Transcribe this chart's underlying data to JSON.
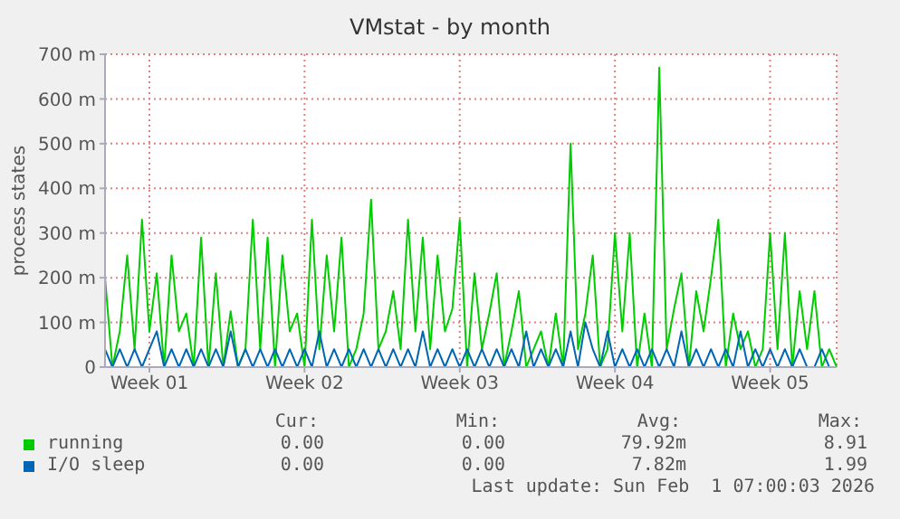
{
  "chart_data": {
    "type": "line",
    "title": "VMstat - by month",
    "ylabel": "process states",
    "categories": [
      null,
      null,
      null,
      null,
      null,
      null,
      "Week 01",
      null,
      null,
      null,
      null,
      null,
      null,
      null,
      null,
      null,
      null,
      null,
      null,
      null,
      null,
      null,
      null,
      null,
      null,
      null,
      null,
      "Week 02",
      null,
      null,
      null,
      null,
      null,
      null,
      null,
      null,
      null,
      null,
      null,
      null,
      null,
      null,
      null,
      null,
      null,
      null,
      null,
      null,
      "Week 03",
      null,
      null,
      null,
      null,
      null,
      null,
      null,
      null,
      null,
      null,
      null,
      null,
      null,
      null,
      null,
      null,
      null,
      null,
      null,
      null,
      "Week 04",
      null,
      null,
      null,
      null,
      null,
      null,
      null,
      null,
      null,
      null,
      null,
      null,
      null,
      null,
      null,
      null,
      null,
      null,
      null,
      null,
      "Week 05",
      null,
      null,
      null,
      null,
      null,
      null,
      null,
      null,
      null
    ],
    "ylim": [
      0,
      700
    ],
    "yticks": [
      0,
      {
        "value": 100,
        "label": "100 m"
      },
      {
        "value": 200,
        "label": "200 m"
      },
      {
        "value": 300,
        "label": "300 m"
      },
      {
        "value": 400,
        "label": "400 m"
      },
      {
        "value": 500,
        "label": "500 m"
      },
      {
        "value": 600,
        "label": "600 m"
      },
      {
        "value": 700,
        "label": "700 m"
      }
    ],
    "grid": true,
    "legend": "bottom",
    "marker": "none",
    "line_style": "solid",
    "series": [
      {
        "name": "running",
        "color": "#00cc00",
        "values": [
          200,
          0,
          80,
          250,
          40,
          330,
          80,
          210,
          0,
          250,
          80,
          120,
          0,
          290,
          0,
          210,
          0,
          125,
          0,
          40,
          330,
          40,
          290,
          0,
          250,
          80,
          120,
          0,
          330,
          40,
          250,
          80,
          290,
          0,
          40,
          120,
          375,
          40,
          80,
          170,
          40,
          330,
          80,
          290,
          40,
          250,
          80,
          130,
          330,
          0,
          210,
          40,
          120,
          210,
          0,
          80,
          170,
          0,
          40,
          80,
          0,
          120,
          0,
          500,
          40,
          120,
          250,
          0,
          40,
          300,
          80,
          300,
          0,
          120,
          0,
          670,
          40,
          130,
          210,
          0,
          170,
          80,
          200,
          330,
          0,
          120,
          40,
          80,
          0,
          40,
          300,
          40,
          300,
          0,
          170,
          40,
          170,
          0,
          40,
          0
        ]
      },
      {
        "name": "I/O sleep",
        "color": "#0066b3",
        "values": [
          40,
          0,
          40,
          0,
          40,
          0,
          40,
          80,
          0,
          40,
          0,
          40,
          0,
          40,
          0,
          40,
          0,
          80,
          0,
          40,
          0,
          40,
          0,
          40,
          0,
          40,
          0,
          40,
          0,
          80,
          0,
          40,
          0,
          40,
          0,
          40,
          0,
          40,
          0,
          40,
          0,
          40,
          0,
          80,
          0,
          40,
          0,
          40,
          0,
          40,
          0,
          40,
          0,
          40,
          0,
          40,
          0,
          80,
          0,
          40,
          0,
          40,
          0,
          80,
          0,
          100,
          40,
          0,
          80,
          0,
          40,
          0,
          40,
          0,
          40,
          0,
          40,
          0,
          80,
          0,
          40,
          0,
          40,
          0,
          40,
          0,
          80,
          0,
          40,
          0,
          40,
          0,
          40,
          0,
          40,
          0,
          0,
          40,
          0,
          0
        ]
      }
    ],
    "annotations": [
      "Cur:",
      "Min:",
      "Avg:",
      "Max:",
      "0.00",
      "0.00",
      "79.92m",
      "8.91",
      "0.00",
      "0.00",
      "7.82m",
      "1.99",
      "Last update: Sun Feb  1 07:00:03 2026"
    ]
  }
}
